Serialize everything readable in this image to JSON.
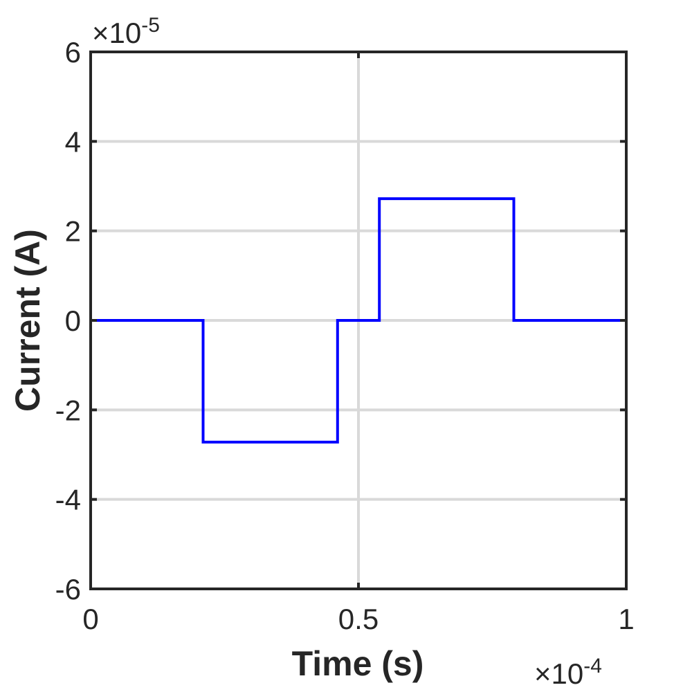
{
  "chart_data": {
    "type": "line",
    "title": "",
    "xlabel": "Time (s)",
    "ylabel": "Current (A)",
    "xlim": [
      0,
      0.0001
    ],
    "ylim": [
      -6e-05,
      6e-05
    ],
    "x_ticks": [
      0,
      0.5,
      1
    ],
    "y_ticks": [
      -6,
      -4,
      -2,
      0,
      2,
      4,
      6
    ],
    "x_tick_labels": [
      "0",
      "0.5",
      "1"
    ],
    "y_tick_labels": [
      "-6",
      "-4",
      "-2",
      "0",
      "2",
      "4",
      "6"
    ],
    "x_exponent": {
      "base": "×10",
      "power": "-4"
    },
    "y_exponent": {
      "base": "×10",
      "power": "-5"
    },
    "grid": true,
    "series": [
      {
        "color": "#0000ff",
        "step": true,
        "x": [
          0,
          2.1e-05,
          2.1e-05,
          4.61e-05,
          4.61e-05,
          5.39e-05,
          5.39e-05,
          7.9e-05,
          7.9e-05,
          0.0001
        ],
        "y": [
          0,
          0,
          -2.72e-05,
          -2.72e-05,
          0,
          0,
          2.72e-05,
          2.72e-05,
          0,
          0
        ]
      }
    ]
  }
}
